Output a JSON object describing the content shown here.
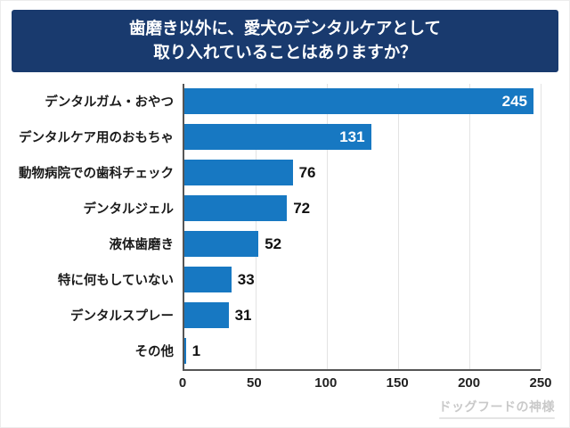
{
  "header": {
    "title_line1": "歯磨き以外に、愛犬のデンタルケアとして",
    "title_line2": "取り入れていることはありますか？"
  },
  "colors": {
    "banner_bg": "#193a6e",
    "bar": "#1778c2",
    "watermark": "#c9c9c9"
  },
  "watermark": {
    "text": "ドッグフードの神様"
  },
  "chart_data": {
    "type": "bar",
    "orientation": "horizontal",
    "title": "歯磨き以外に、愛犬のデンタルケアとして取り入れていることはありますか？",
    "categories": [
      "デンタルガム・おやつ",
      "デンタルケア用のおもちゃ",
      "動物病院での歯科チェック",
      "デンタルジェル",
      "液体歯磨き",
      "特に何もしていない",
      "デンタルスプレー",
      "その他"
    ],
    "values": [
      245,
      131,
      76,
      72,
      52,
      33,
      31,
      1
    ],
    "xlabel": "",
    "ylabel": "",
    "xlim": [
      0,
      250
    ],
    "xticks": [
      0,
      50,
      100,
      150,
      200,
      250
    ],
    "grid": true,
    "legend": false,
    "inside_label_min": 100
  }
}
